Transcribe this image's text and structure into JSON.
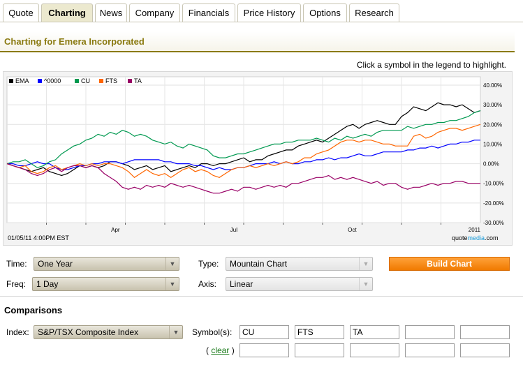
{
  "tabs": [
    "Quote",
    "Charting",
    "News",
    "Company",
    "Financials",
    "Price History",
    "Options",
    "Research"
  ],
  "active_tab": "Charting",
  "page_title": "Charting for Emera Incorporated",
  "legend_hint": "Click a symbol in the legend to highlight.",
  "chart_footer": {
    "date": "01/05/11 4:00PM EST",
    "brand_prefix": "quote",
    "brand_media": "media",
    "brand_suffix": ".com"
  },
  "chart_data": {
    "type": "line",
    "x_ticks": [
      "Apr",
      "Jul",
      "Oct",
      "2011"
    ],
    "y_ticks": [
      "40.00%",
      "30.00%",
      "20.00%",
      "10.00%",
      "0.00%",
      "-10.00%",
      "-20.00%",
      "-30.00%"
    ],
    "ylim": [
      -30,
      40
    ],
    "y_unit": "%",
    "legend_position": "top-left",
    "grid": true,
    "series": [
      {
        "name": "EMA",
        "color": "#000000",
        "values": [
          0,
          -1,
          -2,
          -3,
          -4,
          -3,
          -2,
          -4,
          -5,
          -6,
          -5,
          -3,
          -1,
          -2,
          -1,
          -2,
          -1,
          1,
          1,
          0,
          -1,
          -3,
          -2,
          -1,
          -3,
          -2,
          -1,
          -4,
          -3,
          -2,
          -1,
          -2,
          0,
          0,
          -1,
          0,
          0,
          1,
          2,
          3,
          1,
          2,
          2,
          4,
          5,
          6,
          7,
          7,
          9,
          10,
          11,
          12,
          11,
          13,
          15,
          17,
          19,
          20,
          18,
          20,
          21,
          22,
          21,
          20,
          20,
          24,
          26,
          29,
          28,
          27,
          29,
          31,
          30,
          30,
          29,
          30,
          28,
          26,
          27
        ]
      },
      {
        "name": "^0000",
        "color": "#0000ff",
        "values": [
          0,
          0,
          -1,
          -1,
          0,
          1,
          0,
          0,
          -2,
          -3,
          -3,
          -2,
          -1,
          -1,
          0,
          0,
          1,
          1,
          1,
          0,
          1,
          2,
          2,
          2,
          2,
          2,
          1,
          1,
          0,
          0,
          0,
          -1,
          -1,
          -2,
          -3,
          -2,
          -3,
          -3,
          -2,
          -2,
          -1,
          0,
          0,
          0,
          1,
          0,
          1,
          0,
          0,
          1,
          1,
          2,
          2,
          3,
          2,
          3,
          3,
          4,
          5,
          4,
          4,
          5,
          6,
          6,
          6,
          6,
          7,
          7,
          8,
          8,
          9,
          8,
          9,
          10,
          10,
          11,
          11,
          12,
          12
        ]
      },
      {
        "name": "CU",
        "color": "#009950",
        "values": [
          0,
          1,
          1,
          2,
          0,
          -2,
          -1,
          1,
          2,
          5,
          7,
          9,
          10,
          12,
          13,
          15,
          14,
          16,
          15,
          17,
          16,
          14,
          15,
          14,
          12,
          11,
          10,
          11,
          9,
          8,
          10,
          9,
          8,
          7,
          4,
          3,
          3,
          4,
          5,
          5,
          6,
          7,
          8,
          9,
          10,
          10,
          11,
          11,
          12,
          12,
          12,
          13,
          12,
          11,
          13,
          12,
          14,
          13,
          14,
          15,
          14,
          16,
          17,
          17,
          17,
          17,
          19,
          18,
          19,
          20,
          20,
          21,
          21,
          22,
          22,
          23,
          24,
          26,
          27
        ]
      },
      {
        "name": "FTS",
        "color": "#ff6600",
        "values": [
          0,
          -1,
          -2,
          -1,
          -4,
          -5,
          -4,
          -2,
          -1,
          -3,
          -2,
          -1,
          0,
          -1,
          0,
          -1,
          0,
          0,
          -1,
          -2,
          -4,
          -7,
          -5,
          -3,
          -5,
          -6,
          -5,
          -7,
          -5,
          -3,
          -2,
          -4,
          -3,
          -4,
          -6,
          -7,
          -5,
          -3,
          -2,
          -2,
          -1,
          -2,
          -1,
          0,
          -1,
          0,
          1,
          0,
          1,
          3,
          3,
          5,
          6,
          7,
          9,
          11,
          12,
          12,
          11,
          12,
          12,
          11,
          10,
          10,
          9,
          9,
          9,
          14,
          15,
          13,
          14,
          16,
          17,
          18,
          18,
          17,
          18,
          19,
          20
        ]
      },
      {
        "name": "TA",
        "color": "#990066",
        "values": [
          0,
          -1,
          -2,
          -3,
          -5,
          -6,
          -5,
          -3,
          -2,
          -4,
          -2,
          -1,
          -1,
          -2,
          -1,
          -2,
          -5,
          -7,
          -9,
          -12,
          -13,
          -12,
          -13,
          -11,
          -12,
          -11,
          -12,
          -10,
          -11,
          -12,
          -11,
          -12,
          -13,
          -14,
          -15,
          -15,
          -14,
          -13,
          -14,
          -12,
          -12,
          -13,
          -12,
          -11,
          -12,
          -11,
          -12,
          -10,
          -10,
          -9,
          -8,
          -7,
          -7,
          -6,
          -8,
          -7,
          -8,
          -7,
          -8,
          -9,
          -10,
          -9,
          -11,
          -10,
          -10,
          -12,
          -13,
          -12,
          -12,
          -11,
          -10,
          -11,
          -10,
          -10,
          -9,
          -9,
          -10,
          -10,
          -10
        ]
      }
    ]
  },
  "form": {
    "time_label": "Time:",
    "time_value": "One Year",
    "freq_label": "Freq:",
    "freq_value": "1 Day",
    "type_label": "Type:",
    "type_value": "Mountain Chart",
    "axis_label": "Axis:",
    "axis_value": "Linear",
    "build_label": "Build Chart"
  },
  "comparisons": {
    "section_label": "Comparisons",
    "index_label": "Index:",
    "index_value": "S&P/TSX Composite Index",
    "symbols_label": "Symbol(s):",
    "symbols_row1": [
      "CU",
      "FTS",
      "TA",
      "",
      ""
    ],
    "symbols_row2": [
      "",
      "",
      "",
      "",
      ""
    ],
    "clear_open": "( ",
    "clear_label": "clear",
    "clear_close": " )"
  },
  "icons": {
    "select_arrow": "chevron-down-icon"
  }
}
